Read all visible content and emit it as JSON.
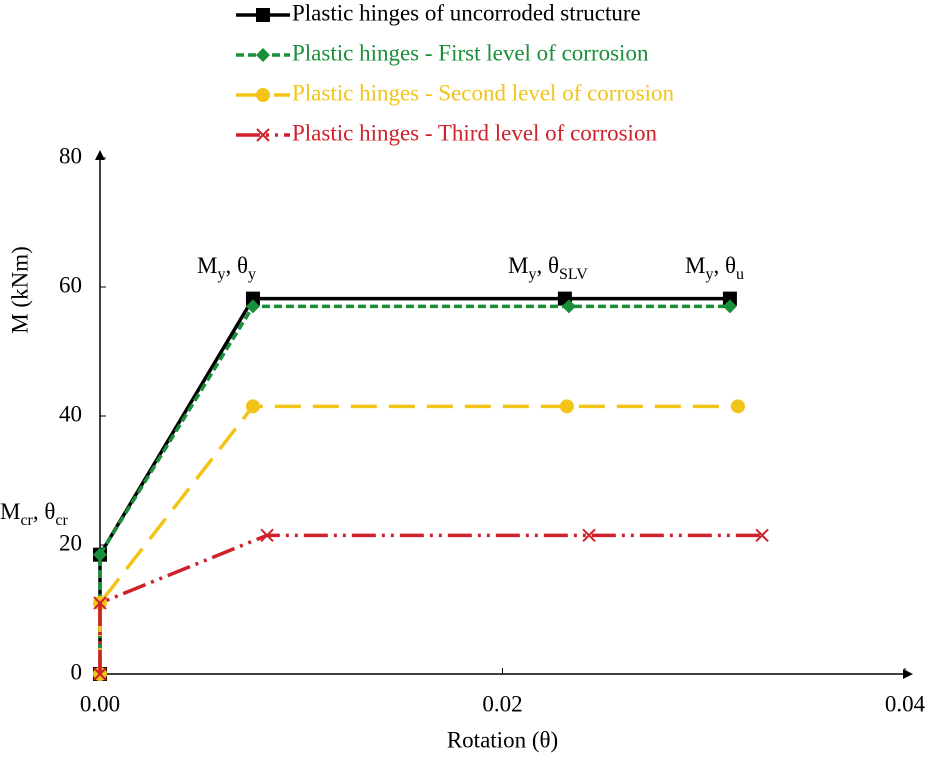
{
  "chart_data": {
    "type": "line",
    "x_label": "Rotation (θ)",
    "y_label": "M (kNm)",
    "xlim": [
      0,
      0.04
    ],
    "ylim": [
      0,
      80
    ],
    "xticks": [
      {
        "value": 0,
        "label": "0.00"
      },
      0.02,
      0.04
    ],
    "yticks": [
      0,
      20,
      40,
      60,
      80
    ],
    "series": [
      {
        "name": "Plastic hinges of uncorroded structure",
        "color": "#000000",
        "dash": "none",
        "marker": "square",
        "x": [
          0,
          0,
          0.0076,
          0.0231,
          0.0313
        ],
        "values": [
          0,
          18.5,
          58.2,
          58.2,
          58.2
        ]
      },
      {
        "name": "Plastic hinges - First level of corrosion",
        "color": "#1a8f3a",
        "dash": "8,4",
        "marker": "diamond",
        "x": [
          0,
          0,
          0.0076,
          0.0233,
          0.0313
        ],
        "values": [
          0,
          18.5,
          57,
          57,
          57
        ]
      },
      {
        "name": "Plastic hinges - Second level of corrosion",
        "color": "#f2c418",
        "dash": "26,12",
        "marker": "circle",
        "x": [
          0,
          0,
          0.0076,
          0.0232,
          0.0317
        ],
        "values": [
          0,
          11,
          41.5,
          41.5,
          41.5
        ]
      },
      {
        "name": "Plastic hinges - Third level of corrosion",
        "color": "#d0202a",
        "dash": "24,6,3,6,3,6",
        "marker": "x",
        "x": [
          0,
          0,
          0.0083,
          0.0243,
          0.0329
        ],
        "values": [
          0,
          11,
          21.5,
          21.5,
          21.5
        ]
      }
    ],
    "annotations": [
      [
        "M",
        "y",
        ", θ",
        "y"
      ],
      [
        "M",
        "y",
        ", θ",
        "SLV"
      ],
      [
        "M",
        "y",
        ", θ",
        "u"
      ],
      [
        "M",
        "cr",
        ", θ",
        "cr"
      ]
    ]
  }
}
